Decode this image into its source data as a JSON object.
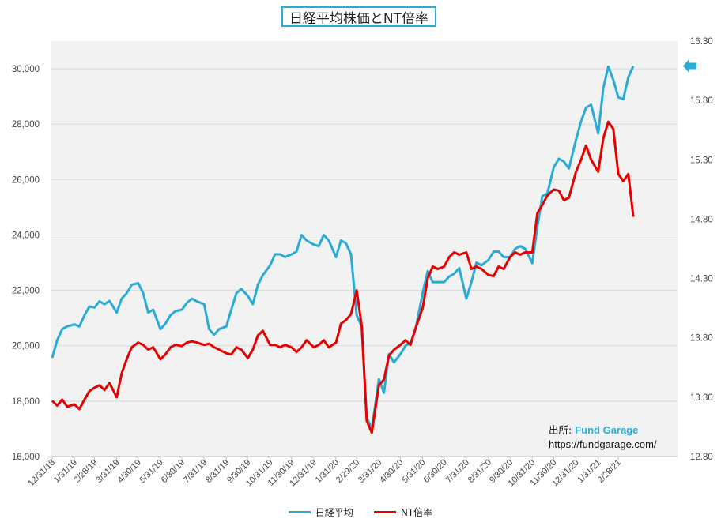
{
  "chart_data": {
    "type": "line",
    "title": "日経平均株価とNT倍率",
    "x": [
      "12/31/18",
      "1/31/19",
      "2/28/19",
      "3/31/19",
      "4/30/19",
      "5/31/19",
      "6/30/19",
      "7/31/19",
      "8/31/19",
      "9/30/19",
      "10/31/19",
      "11/30/19",
      "12/31/19",
      "1/31/20",
      "2/29/20",
      "3/31/20",
      "4/30/20",
      "5/31/20",
      "6/30/20",
      "7/31/20",
      "8/31/20",
      "9/30/20",
      "10/31/20",
      "11/30/20",
      "12/31/20",
      "1/31/21",
      "2/28/21"
    ],
    "y_left": {
      "ylim": [
        16000,
        31000
      ],
      "ticks": [
        "16,000",
        "18,000",
        "20,000",
        "22,000",
        "24,000",
        "26,000",
        "28,000",
        "30,000"
      ]
    },
    "y_right": {
      "ylim": [
        12.8,
        16.3
      ],
      "ticks": [
        "12.80",
        "13.30",
        "13.80",
        "14.30",
        "14.80",
        "15.30",
        "15.80",
        "16.30"
      ]
    },
    "series": [
      {
        "name": "日経平均",
        "color": "#29abd6",
        "axis": "left",
        "points": [
          [
            "12/31/18",
            19561
          ],
          [
            "1/7/19",
            20200
          ],
          [
            "1/14/19",
            20600
          ],
          [
            "1/21/19",
            20700
          ],
          [
            "1/31/19",
            20770
          ],
          [
            "2/7/19",
            20700
          ],
          [
            "2/14/19",
            21100
          ],
          [
            "2/21/19",
            21420
          ],
          [
            "2/28/19",
            21380
          ],
          [
            "3/7/19",
            21600
          ],
          [
            "3/14/19",
            21500
          ],
          [
            "3/21/19",
            21620
          ],
          [
            "3/31/19",
            21200
          ],
          [
            "4/7/19",
            21700
          ],
          [
            "4/14/19",
            21900
          ],
          [
            "4/21/19",
            22200
          ],
          [
            "4/30/19",
            22260
          ],
          [
            "5/7/19",
            21900
          ],
          [
            "5/14/19",
            21200
          ],
          [
            "5/21/19",
            21300
          ],
          [
            "5/31/19",
            20600
          ],
          [
            "6/7/19",
            20800
          ],
          [
            "6/14/19",
            21100
          ],
          [
            "6/21/19",
            21250
          ],
          [
            "6/30/19",
            21300
          ],
          [
            "7/7/19",
            21550
          ],
          [
            "7/14/19",
            21700
          ],
          [
            "7/21/19",
            21600
          ],
          [
            "7/31/19",
            21500
          ],
          [
            "8/7/19",
            20600
          ],
          [
            "8/14/19",
            20400
          ],
          [
            "8/21/19",
            20600
          ],
          [
            "8/31/19",
            20700
          ],
          [
            "9/7/19",
            21300
          ],
          [
            "9/14/19",
            21900
          ],
          [
            "9/21/19",
            22050
          ],
          [
            "9/30/19",
            21800
          ],
          [
            "10/7/19",
            21500
          ],
          [
            "10/14/19",
            22200
          ],
          [
            "10/21/19",
            22550
          ],
          [
            "10/31/19",
            22900
          ],
          [
            "11/7/19",
            23300
          ],
          [
            "11/14/19",
            23300
          ],
          [
            "11/21/19",
            23200
          ],
          [
            "11/30/19",
            23300
          ],
          [
            "12/7/19",
            23400
          ],
          [
            "12/14/19",
            24000
          ],
          [
            "12/21/19",
            23800
          ],
          [
            "12/31/19",
            23650
          ],
          [
            "1/7/20",
            23600
          ],
          [
            "1/14/20",
            24000
          ],
          [
            "1/21/20",
            23800
          ],
          [
            "1/31/20",
            23200
          ],
          [
            "2/7/20",
            23800
          ],
          [
            "2/14/20",
            23700
          ],
          [
            "2/21/20",
            23300
          ],
          [
            "2/29/20",
            21100
          ],
          [
            "3/7/20",
            20700
          ],
          [
            "3/14/20",
            17400
          ],
          [
            "3/21/20",
            17000
          ],
          [
            "3/31/20",
            18800
          ],
          [
            "4/7/20",
            18300
          ],
          [
            "4/14/20",
            19700
          ],
          [
            "4/21/20",
            19400
          ],
          [
            "4/30/20",
            19700
          ],
          [
            "5/7/20",
            20000
          ],
          [
            "5/14/20",
            20100
          ],
          [
            "5/21/20",
            20600
          ],
          [
            "5/31/20",
            21900
          ],
          [
            "6/7/20",
            22700
          ],
          [
            "6/14/20",
            22300
          ],
          [
            "6/21/20",
            22300
          ],
          [
            "6/30/20",
            22300
          ],
          [
            "7/7/20",
            22500
          ],
          [
            "7/14/20",
            22600
          ],
          [
            "7/21/20",
            22800
          ],
          [
            "7/31/20",
            21700
          ],
          [
            "8/7/20",
            22300
          ],
          [
            "8/14/20",
            23000
          ],
          [
            "8/21/20",
            22900
          ],
          [
            "8/31/20",
            23100
          ],
          [
            "9/7/20",
            23400
          ],
          [
            "9/14/20",
            23400
          ],
          [
            "9/21/20",
            23200
          ],
          [
            "9/30/20",
            23200
          ],
          [
            "10/7/20",
            23500
          ],
          [
            "10/14/20",
            23600
          ],
          [
            "10/21/20",
            23500
          ],
          [
            "10/31/20",
            22980
          ],
          [
            "11/7/20",
            24300
          ],
          [
            "11/14/20",
            25400
          ],
          [
            "11/21/20",
            25500
          ],
          [
            "11/30/20",
            26450
          ],
          [
            "12/7/20",
            26750
          ],
          [
            "12/14/20",
            26650
          ],
          [
            "12/21/20",
            26400
          ],
          [
            "12/31/20",
            27440
          ],
          [
            "1/7/21",
            28100
          ],
          [
            "1/14/21",
            28600
          ],
          [
            "1/21/21",
            28700
          ],
          [
            "1/31/21",
            27660
          ],
          [
            "2/7/21",
            29300
          ],
          [
            "2/14/21",
            30080
          ],
          [
            "2/21/21",
            29600
          ],
          [
            "2/28/21",
            28970
          ],
          [
            "3/7/21",
            28900
          ],
          [
            "3/14/21",
            29700
          ],
          [
            "3/21/21",
            30100
          ]
        ]
      },
      {
        "name": "NT倍率",
        "color": "#e80000",
        "axis": "right",
        "points": [
          [
            "12/31/18",
            13.27
          ],
          [
            "1/7/19",
            13.23
          ],
          [
            "1/14/19",
            13.28
          ],
          [
            "1/21/19",
            13.22
          ],
          [
            "1/31/19",
            13.24
          ],
          [
            "2/7/19",
            13.2
          ],
          [
            "2/14/19",
            13.28
          ],
          [
            "2/21/19",
            13.35
          ],
          [
            "2/28/19",
            13.38
          ],
          [
            "3/7/19",
            13.4
          ],
          [
            "3/14/19",
            13.36
          ],
          [
            "3/21/19",
            13.42
          ],
          [
            "3/31/19",
            13.3
          ],
          [
            "4/7/19",
            13.5
          ],
          [
            "4/14/19",
            13.62
          ],
          [
            "4/21/19",
            13.72
          ],
          [
            "4/30/19",
            13.76
          ],
          [
            "5/7/19",
            13.74
          ],
          [
            "5/14/19",
            13.7
          ],
          [
            "5/21/19",
            13.72
          ],
          [
            "5/31/19",
            13.62
          ],
          [
            "6/7/19",
            13.66
          ],
          [
            "6/14/19",
            13.72
          ],
          [
            "6/21/19",
            13.74
          ],
          [
            "6/30/19",
            13.73
          ],
          [
            "7/7/19",
            13.76
          ],
          [
            "7/14/19",
            13.77
          ],
          [
            "7/21/19",
            13.76
          ],
          [
            "7/31/19",
            13.74
          ],
          [
            "8/7/19",
            13.75
          ],
          [
            "8/14/19",
            13.72
          ],
          [
            "8/21/19",
            13.7
          ],
          [
            "8/31/19",
            13.67
          ],
          [
            "9/7/19",
            13.66
          ],
          [
            "9/14/19",
            13.72
          ],
          [
            "9/21/19",
            13.7
          ],
          [
            "9/30/19",
            13.63
          ],
          [
            "10/7/19",
            13.7
          ],
          [
            "10/14/19",
            13.82
          ],
          [
            "10/21/19",
            13.86
          ],
          [
            "10/31/19",
            13.74
          ],
          [
            "11/7/19",
            13.74
          ],
          [
            "11/14/19",
            13.72
          ],
          [
            "11/21/19",
            13.74
          ],
          [
            "11/30/19",
            13.72
          ],
          [
            "12/7/19",
            13.68
          ],
          [
            "12/14/19",
            13.72
          ],
          [
            "12/21/19",
            13.78
          ],
          [
            "12/31/19",
            13.72
          ],
          [
            "1/7/20",
            13.74
          ],
          [
            "1/14/20",
            13.78
          ],
          [
            "1/21/20",
            13.72
          ],
          [
            "1/31/20",
            13.76
          ],
          [
            "2/7/20",
            13.92
          ],
          [
            "2/14/20",
            13.95
          ],
          [
            "2/21/20",
            14.0
          ],
          [
            "2/29/20",
            14.2
          ],
          [
            "3/7/20",
            13.9
          ],
          [
            "3/14/20",
            13.1
          ],
          [
            "3/21/20",
            13.0
          ],
          [
            "3/31/20",
            13.4
          ],
          [
            "4/7/20",
            13.45
          ],
          [
            "4/14/20",
            13.65
          ],
          [
            "4/21/20",
            13.7
          ],
          [
            "4/30/20",
            13.74
          ],
          [
            "5/7/20",
            13.78
          ],
          [
            "5/14/20",
            13.74
          ],
          [
            "5/21/20",
            13.88
          ],
          [
            "5/31/20",
            14.05
          ],
          [
            "6/7/20",
            14.3
          ],
          [
            "6/14/20",
            14.4
          ],
          [
            "6/21/20",
            14.38
          ],
          [
            "6/30/20",
            14.4
          ],
          [
            "7/7/20",
            14.48
          ],
          [
            "7/14/20",
            14.52
          ],
          [
            "7/21/20",
            14.5
          ],
          [
            "7/31/20",
            14.52
          ],
          [
            "8/7/20",
            14.38
          ],
          [
            "8/14/20",
            14.4
          ],
          [
            "8/21/20",
            14.38
          ],
          [
            "8/31/20",
            14.33
          ],
          [
            "9/7/20",
            14.32
          ],
          [
            "9/14/20",
            14.4
          ],
          [
            "9/21/20",
            14.38
          ],
          [
            "9/30/20",
            14.48
          ],
          [
            "10/7/20",
            14.52
          ],
          [
            "10/14/20",
            14.5
          ],
          [
            "10/21/20",
            14.52
          ],
          [
            "10/31/20",
            14.52
          ],
          [
            "11/7/20",
            14.85
          ],
          [
            "11/14/20",
            14.92
          ],
          [
            "11/21/20",
            15.0
          ],
          [
            "11/30/20",
            15.05
          ],
          [
            "12/7/20",
            15.04
          ],
          [
            "12/14/20",
            14.96
          ],
          [
            "12/21/20",
            14.98
          ],
          [
            "12/31/20",
            15.2
          ],
          [
            "1/7/21",
            15.3
          ],
          [
            "1/14/21",
            15.42
          ],
          [
            "1/21/21",
            15.3
          ],
          [
            "1/31/21",
            15.2
          ],
          [
            "2/7/21",
            15.48
          ],
          [
            "2/14/21",
            15.62
          ],
          [
            "2/21/21",
            15.56
          ],
          [
            "2/28/21",
            15.18
          ],
          [
            "3/7/21",
            15.12
          ],
          [
            "3/14/21",
            15.18
          ],
          [
            "3/21/21",
            14.82
          ]
        ]
      }
    ],
    "annotation": {
      "source_label": "出所:",
      "source_name": "Fund Garage",
      "url": "https://fundgarage.com/"
    },
    "marker": {
      "symbol": "left-arrow",
      "color": "#29abd6"
    },
    "grid": "horizontal",
    "legend_position": "bottom"
  }
}
